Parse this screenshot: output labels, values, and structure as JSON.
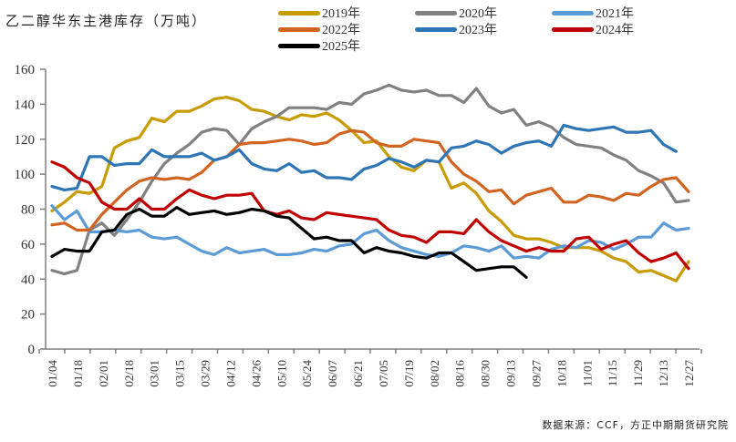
{
  "chart_data": {
    "type": "line",
    "title": "乙二醇华东主港库存（万吨）",
    "source": "数据来源：CCF，方正中期期货研究院",
    "xlabel": "",
    "ylabel": "",
    "ylim": [
      0,
      160
    ],
    "yticks": [
      "0",
      "20",
      "40",
      "60",
      "80",
      "100",
      "120",
      "140",
      "160"
    ],
    "x_tick_labels": [
      "01/04",
      "01/18",
      "02/01",
      "02/18",
      "03/01",
      "03/15",
      "03/29",
      "04/12",
      "04/26",
      "05/10",
      "05/24",
      "06/07",
      "06/21",
      "07/05",
      "07/19",
      "08/02",
      "08/16",
      "08/30",
      "09/13",
      "09/27",
      "10/18",
      "11/01",
      "11/15",
      "11/29",
      "12/13",
      "12/27"
    ],
    "weeks": 52,
    "grid": false,
    "legend_position": "top",
    "series": [
      {
        "name": "2019年",
        "color": "#C89B00",
        "values": [
          79,
          84,
          90,
          89,
          93,
          115,
          119,
          121,
          132,
          130,
          136,
          136,
          139,
          143,
          144,
          142,
          137,
          136,
          133,
          131,
          134,
          133,
          135,
          131,
          125,
          118,
          119,
          110,
          104,
          102,
          108,
          107,
          92,
          95,
          89,
          79,
          73,
          65,
          63,
          63,
          61,
          58,
          58,
          58,
          56,
          52,
          50,
          44,
          45,
          42,
          39,
          50
        ]
      },
      {
        "name": "2020年",
        "color": "#808080",
        "values": [
          45,
          43,
          45,
          68,
          72,
          65,
          74,
          84,
          96,
          106,
          112,
          117,
          124,
          126,
          125,
          117,
          126,
          130,
          133,
          138,
          138,
          138,
          137,
          141,
          140,
          146,
          148,
          151,
          148,
          147,
          148,
          145,
          145,
          141,
          149,
          139,
          135,
          137,
          128,
          130,
          127,
          121,
          117,
          116,
          115,
          111,
          108,
          102,
          99,
          95,
          84,
          85
        ]
      },
      {
        "name": "2021年",
        "color": "#5B9BD5",
        "values": [
          82,
          74,
          79,
          67,
          67,
          68,
          67,
          68,
          64,
          63,
          64,
          60,
          56,
          54,
          58,
          55,
          56,
          57,
          54,
          54,
          55,
          57,
          56,
          59,
          60,
          66,
          68,
          62,
          58,
          56,
          54,
          53,
          55,
          59,
          58,
          56,
          59,
          52,
          53,
          52,
          57,
          59,
          58,
          62,
          61,
          57,
          60,
          64,
          64,
          72,
          68,
          69
        ]
      },
      {
        "name": "2022年",
        "color": "#D06420",
        "values": [
          71,
          72,
          68,
          68,
          77,
          84,
          91,
          96,
          98,
          97,
          98,
          97,
          101,
          108,
          110,
          117,
          118,
          118,
          119,
          120,
          119,
          117,
          118,
          123,
          125,
          124,
          118,
          116,
          116,
          120,
          119,
          118,
          107,
          100,
          96,
          90,
          91,
          83,
          88,
          90,
          92,
          84,
          84,
          88,
          87,
          85,
          89,
          88,
          93,
          97,
          98,
          90
        ]
      },
      {
        "name": "2023年",
        "color": "#2E75B6",
        "values": [
          93,
          91,
          92,
          110,
          110,
          105,
          106,
          106,
          114,
          110,
          110,
          110,
          112,
          108,
          110,
          114,
          106,
          103,
          102,
          106,
          101,
          102,
          98,
          98,
          97,
          103,
          105,
          109,
          107,
          104,
          108,
          107,
          115,
          116,
          119,
          117,
          112,
          116,
          118,
          119,
          116,
          128,
          126,
          125,
          126,
          127,
          124,
          124,
          125,
          117,
          113
        ]
      },
      {
        "name": "2024年",
        "color": "#C00000",
        "values": [
          107,
          104,
          98,
          95,
          84,
          80,
          80,
          86,
          80,
          80,
          86,
          91,
          88,
          86,
          88,
          88,
          89,
          79,
          77,
          79,
          75,
          74,
          78,
          77,
          76,
          75,
          74,
          68,
          65,
          64,
          61,
          67,
          67,
          66,
          74,
          67,
          62,
          59,
          56,
          58,
          56,
          56,
          63,
          64,
          57,
          60,
          62,
          55,
          50,
          52,
          55,
          46
        ]
      },
      {
        "name": "2025年",
        "color": "#000000",
        "values": [
          53,
          57,
          56,
          56,
          67,
          68,
          77,
          80,
          76,
          76,
          81,
          77,
          78,
          79,
          77,
          78,
          80,
          79,
          76,
          75,
          69,
          63,
          64,
          62,
          62,
          55,
          58,
          56,
          55,
          53,
          52,
          55,
          55,
          50,
          45,
          46,
          47,
          47,
          41
        ]
      }
    ]
  }
}
